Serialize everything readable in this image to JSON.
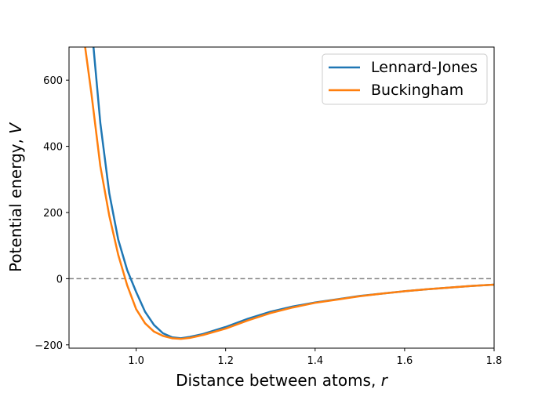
{
  "chart_data": {
    "type": "line",
    "xlabel_text": "Distance between atoms, ",
    "xlabel_var": "r",
    "ylabel_text": "Potential energy, ",
    "ylabel_var": "V",
    "xlim": [
      0.85,
      1.8
    ],
    "ylim": [
      -210,
      700
    ],
    "xticks": [
      1.0,
      1.2,
      1.4,
      1.6,
      1.8
    ],
    "xtick_labels": [
      "1.0",
      "1.2",
      "1.4",
      "1.6",
      "1.8"
    ],
    "yticks": [
      -200,
      0,
      200,
      400,
      600
    ],
    "ytick_labels": [
      "−200",
      "0",
      "200",
      "400",
      "600"
    ],
    "legend_position": "top-right",
    "reference_line": {
      "y": 0,
      "style": "dashed",
      "color": "#808080"
    },
    "series": [
      {
        "name": "Lennard-Jones",
        "color": "#1f77b4",
        "x": [
          0.9,
          0.92,
          0.94,
          0.96,
          0.98,
          1.0,
          1.02,
          1.04,
          1.06,
          1.08,
          1.1,
          1.12,
          1.15,
          1.2,
          1.25,
          1.3,
          1.35,
          1.4,
          1.45,
          1.5,
          1.55,
          1.6,
          1.65,
          1.7,
          1.75,
          1.8
        ],
        "y": [
          770,
          470,
          258,
          118,
          26,
          -40,
          -100,
          -140,
          -165,
          -177,
          -180,
          -176,
          -167,
          -146,
          -121,
          -100,
          -84,
          -72,
          -62,
          -52,
          -45,
          -38,
          -32,
          -27,
          -22,
          -18
        ]
      },
      {
        "name": "Buckingham",
        "color": "#ff7f0e",
        "x": [
          0.88,
          0.9,
          0.92,
          0.94,
          0.96,
          0.98,
          1.0,
          1.02,
          1.04,
          1.06,
          1.08,
          1.1,
          1.12,
          1.15,
          1.2,
          1.25,
          1.3,
          1.35,
          1.4,
          1.45,
          1.5,
          1.55,
          1.6,
          1.65,
          1.7,
          1.75,
          1.8
        ],
        "y": [
          760,
          560,
          340,
          190,
          72,
          -20,
          -92,
          -135,
          -160,
          -173,
          -180,
          -182,
          -179,
          -170,
          -151,
          -126,
          -104,
          -87,
          -73,
          -63,
          -53,
          -45,
          -38,
          -32,
          -27,
          -22,
          -18
        ]
      }
    ]
  }
}
